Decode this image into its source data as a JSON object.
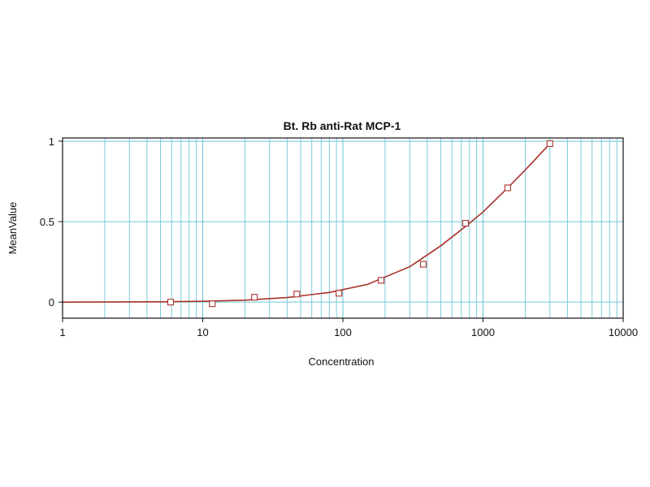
{
  "chart_data": {
    "type": "scatter",
    "title": "Bt. Rb anti-Rat MCP-1",
    "xlabel": "Concentration",
    "ylabel": "MeanValue",
    "x_scale": "log",
    "xlim": [
      1,
      10000
    ],
    "ylim": [
      -0.1,
      1.02
    ],
    "x_ticks": [
      1,
      10,
      100,
      1000,
      10000
    ],
    "x_tick_labels": [
      "1",
      "10",
      "100",
      "1000",
      "10000"
    ],
    "y_ticks": [
      0,
      0.5,
      1
    ],
    "y_tick_labels": [
      "0",
      "0.5",
      "1"
    ],
    "grid": true,
    "legend": "none",
    "series": [
      {
        "kind": "points",
        "marker": "open-square",
        "x": [
          5.9,
          11.7,
          23.4,
          46.9,
          93.8,
          187.5,
          375,
          750,
          1500,
          3000
        ],
        "y": [
          0.0,
          -0.01,
          0.03,
          0.05,
          0.055,
          0.135,
          0.235,
          0.49,
          0.71,
          0.985
        ]
      },
      {
        "kind": "fit-curve",
        "x": [
          1,
          5,
          10,
          20,
          40,
          80,
          150,
          300,
          500,
          750,
          1000,
          1500,
          2000,
          3000
        ],
        "y": [
          0.0,
          0.002,
          0.005,
          0.012,
          0.028,
          0.06,
          0.11,
          0.22,
          0.35,
          0.47,
          0.56,
          0.71,
          0.82,
          0.985
        ]
      }
    ],
    "colors": {
      "frame": "#111111",
      "grid": "#6fc6d6",
      "series": "#a8312b"
    }
  }
}
